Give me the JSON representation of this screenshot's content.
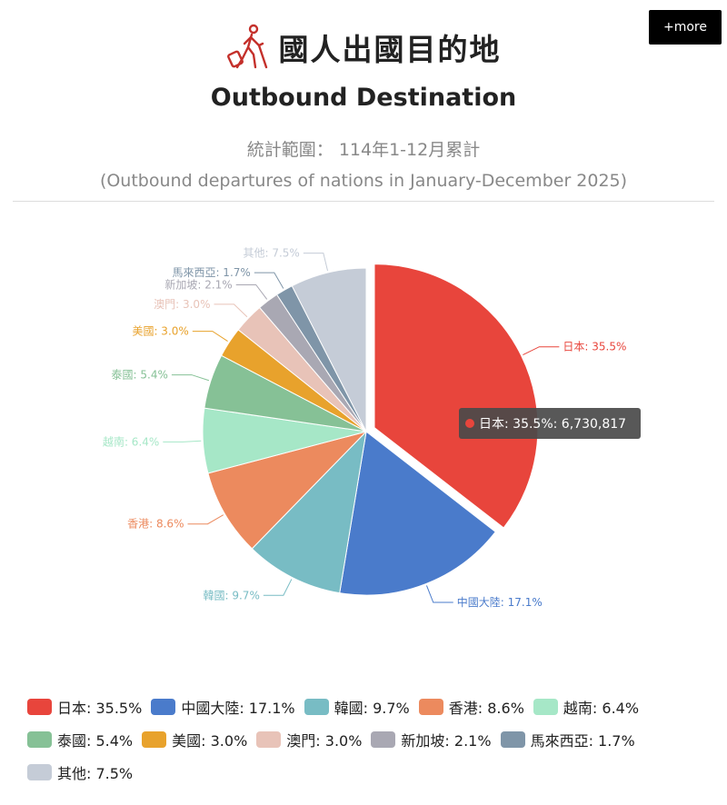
{
  "header": {
    "title_zh": "國人出國目的地",
    "title_en": "Outbound Destination",
    "range_zh": "統計範圍： 114年1-12月累計",
    "range_en": "(Outbound departures of nations in January-December 2025)",
    "more_label": "+more",
    "icon": "traveler-with-luggage-icon"
  },
  "tooltip": {
    "text": "日本: 35.5%: 6,730,817"
  },
  "chart_data": {
    "type": "pie",
    "start_angle_deg": 90,
    "direction": "clockwise",
    "slices": [
      {
        "name": "日本",
        "value": 35.5,
        "label": "日本: 35.5%",
        "color": "#e8453c"
      },
      {
        "name": "中國大陸",
        "value": 17.1,
        "label": "中國大陸: 17.1%",
        "color": "#4a7bcb"
      },
      {
        "name": "韓國",
        "value": 9.7,
        "label": "韓國: 9.7%",
        "color": "#78bcc4"
      },
      {
        "name": "香港",
        "value": 8.6,
        "label": "香港: 8.6%",
        "color": "#ec8a5e"
      },
      {
        "name": "越南",
        "value": 6.4,
        "label": "越南: 6.4%",
        "color": "#a6e7c7"
      },
      {
        "name": "泰國",
        "value": 5.4,
        "label": "泰國: 5.4%",
        "color": "#86c196"
      },
      {
        "name": "美國",
        "value": 3.0,
        "label": "美國: 3.0%",
        "color": "#e8a22c"
      },
      {
        "name": "澳門",
        "value": 3.0,
        "label": "澳門: 3.0%",
        "color": "#e8c3b8"
      },
      {
        "name": "新加坡",
        "value": 2.1,
        "label": "新加坡: 2.1%",
        "color": "#a9a8b3"
      },
      {
        "name": "馬來西亞",
        "value": 1.7,
        "label": "馬來西亞: 1.7%",
        "color": "#7f95a8"
      },
      {
        "name": "其他",
        "value": 7.5,
        "label": "其他: 7.5%",
        "color": "#c5ccd7"
      }
    ],
    "highlighted": "日本",
    "legend": "bottom"
  }
}
